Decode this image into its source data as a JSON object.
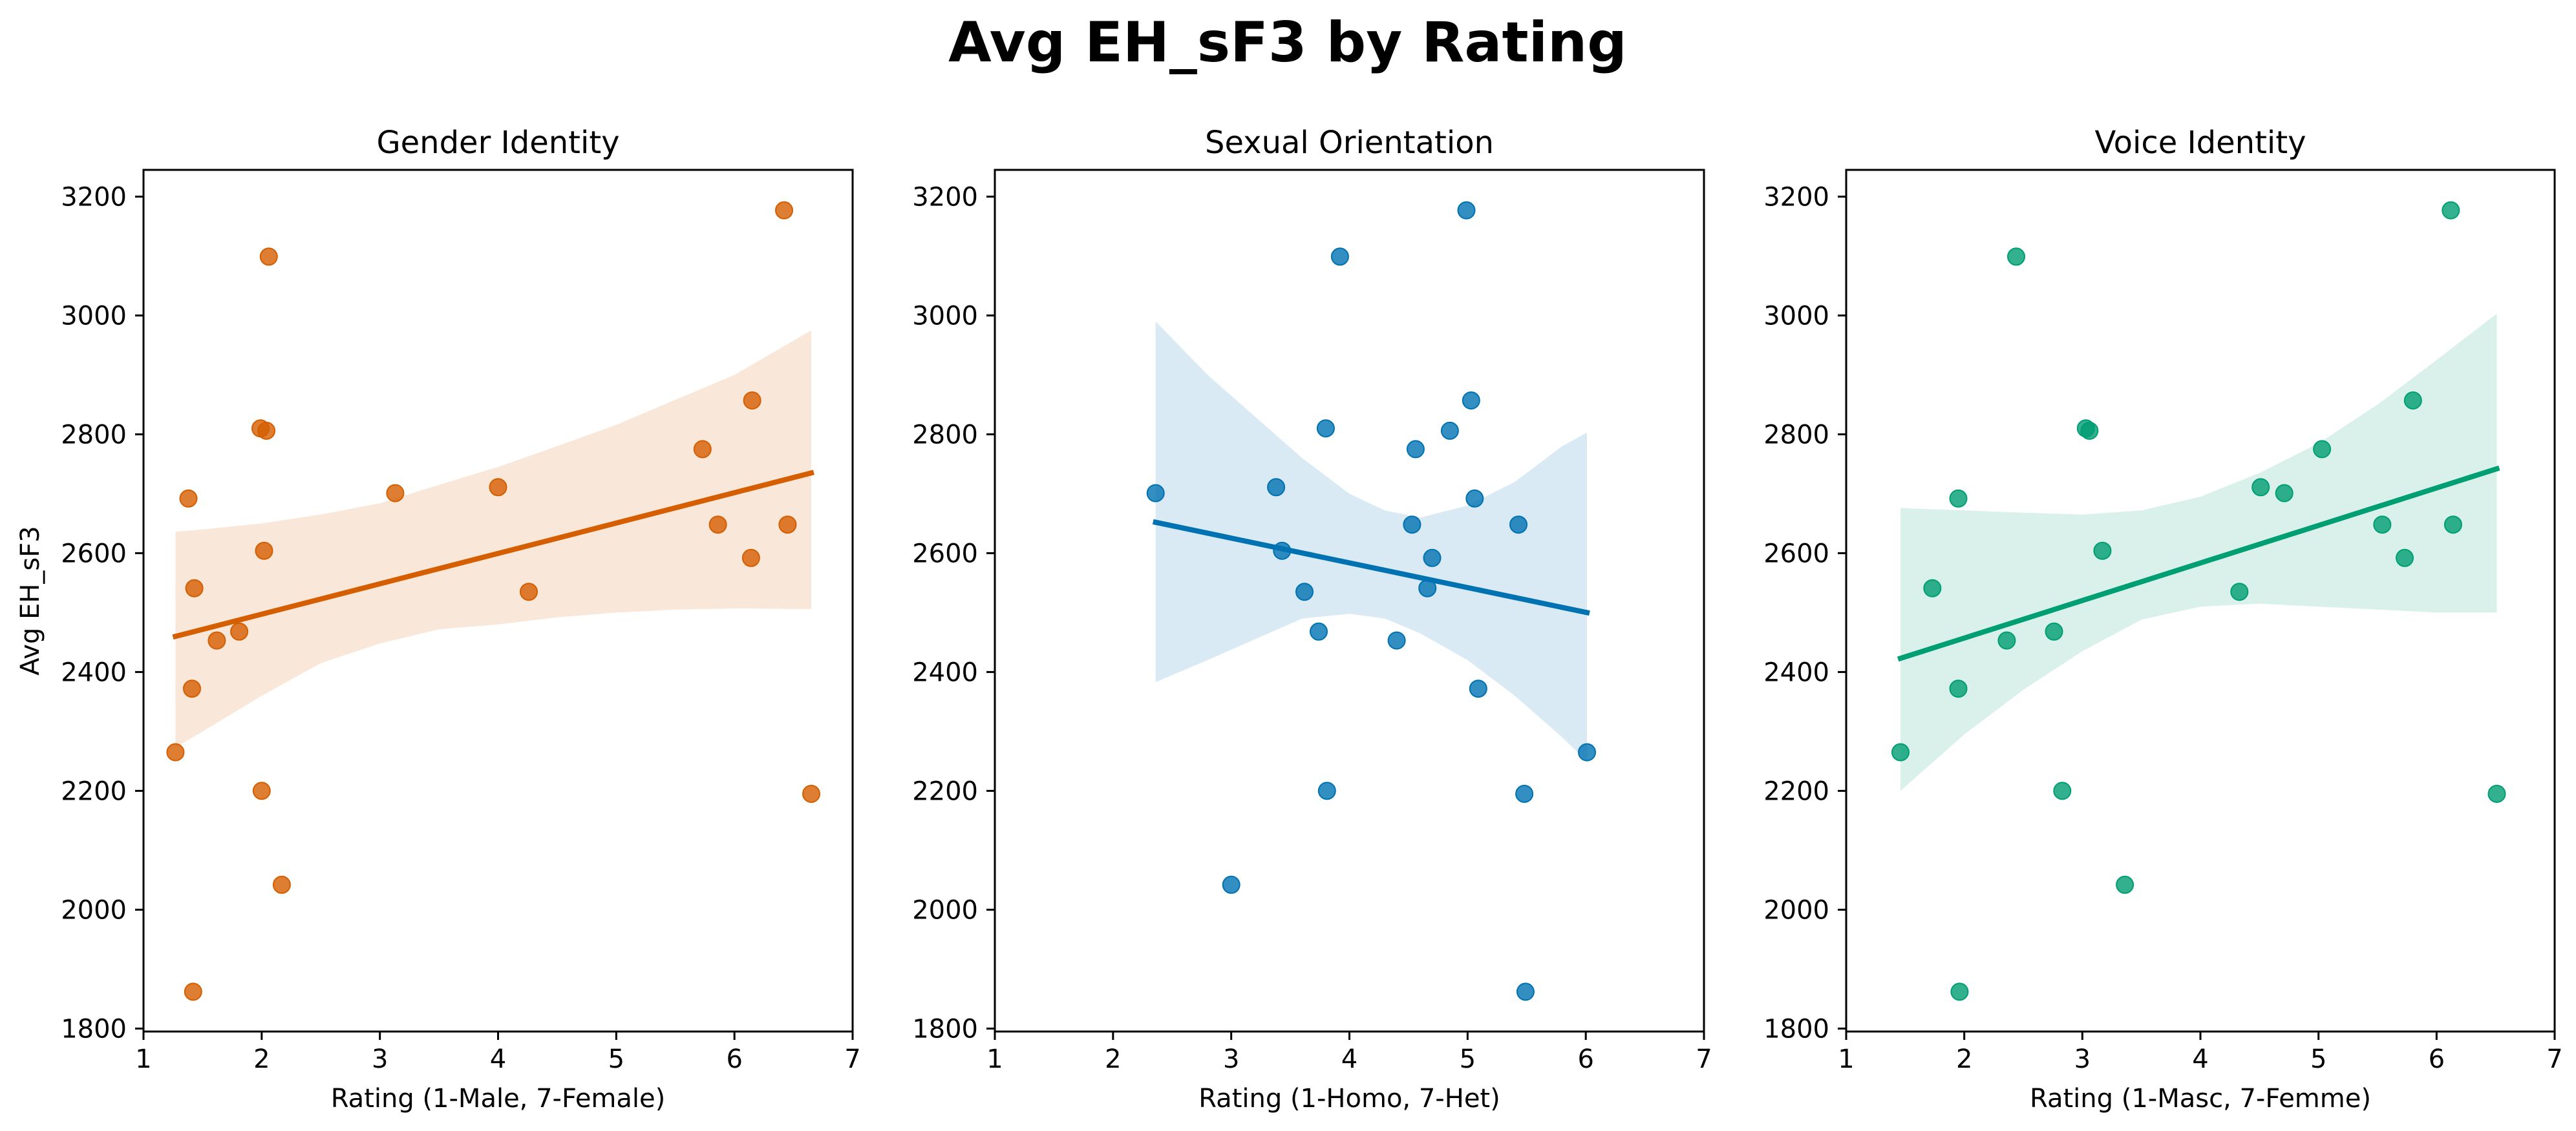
{
  "figure": {
    "title": "Avg EH_sF3 by Rating"
  },
  "chart_data": [
    {
      "type": "scatter",
      "title": "Gender Identity",
      "xlabel": "Rating (1-Male, 7-Female)",
      "ylabel": "Avg EH_sF3",
      "xlim": [
        1,
        7
      ],
      "ylim": [
        1795,
        3245
      ],
      "xticks": [
        1,
        2,
        3,
        4,
        5,
        6,
        7
      ],
      "yticks": [
        1800,
        2000,
        2200,
        2400,
        2600,
        2800,
        3000,
        3200
      ],
      "color": "#d55e00",
      "points": [
        {
          "x": 1.27,
          "y": 2265
        },
        {
          "x": 1.38,
          "y": 2692
        },
        {
          "x": 1.41,
          "y": 2372
        },
        {
          "x": 1.42,
          "y": 1862
        },
        {
          "x": 1.43,
          "y": 2541
        },
        {
          "x": 1.62,
          "y": 2453
        },
        {
          "x": 1.81,
          "y": 2468
        },
        {
          "x": 1.99,
          "y": 2810
        },
        {
          "x": 2.0,
          "y": 2200
        },
        {
          "x": 2.02,
          "y": 2604
        },
        {
          "x": 2.04,
          "y": 2806
        },
        {
          "x": 2.06,
          "y": 3099
        },
        {
          "x": 2.17,
          "y": 2042
        },
        {
          "x": 3.13,
          "y": 2701
        },
        {
          "x": 4.0,
          "y": 2711
        },
        {
          "x": 4.26,
          "y": 2535
        },
        {
          "x": 5.73,
          "y": 2775
        },
        {
          "x": 5.86,
          "y": 2648
        },
        {
          "x": 6.14,
          "y": 2592
        },
        {
          "x": 6.15,
          "y": 2857
        },
        {
          "x": 6.42,
          "y": 3177
        },
        {
          "x": 6.45,
          "y": 2648
        },
        {
          "x": 6.65,
          "y": 2195
        }
      ],
      "regression": {
        "x": [
          1.27,
          6.65
        ],
        "y": [
          2460,
          2735
        ]
      },
      "ci_band": {
        "x": [
          1.27,
          1.5,
          2.0,
          2.5,
          3.0,
          3.5,
          4.0,
          4.5,
          5.0,
          5.5,
          6.0,
          6.65
        ],
        "upper": [
          2636,
          2640,
          2650,
          2665,
          2684,
          2715,
          2745,
          2780,
          2816,
          2858,
          2900,
          2975
        ],
        "lower": [
          2273,
          2300,
          2360,
          2415,
          2448,
          2472,
          2480,
          2492,
          2500,
          2505,
          2507,
          2506
        ]
      }
    },
    {
      "type": "scatter",
      "title": "Sexual Orientation",
      "xlabel": "Rating (1-Homo, 7-Het)",
      "ylabel": "",
      "xlim": [
        1,
        7
      ],
      "ylim": [
        1795,
        3245
      ],
      "xticks": [
        1,
        2,
        3,
        4,
        5,
        6,
        7
      ],
      "yticks": [
        1800,
        2000,
        2200,
        2400,
        2600,
        2800,
        3000,
        3200
      ],
      "color": "#0072b2",
      "points": [
        {
          "x": 2.36,
          "y": 2701
        },
        {
          "x": 3.0,
          "y": 2042
        },
        {
          "x": 3.38,
          "y": 2711
        },
        {
          "x": 3.43,
          "y": 2604
        },
        {
          "x": 3.62,
          "y": 2535
        },
        {
          "x": 3.74,
          "y": 2468
        },
        {
          "x": 3.8,
          "y": 2810
        },
        {
          "x": 3.81,
          "y": 2200
        },
        {
          "x": 3.92,
          "y": 3099
        },
        {
          "x": 4.4,
          "y": 2453
        },
        {
          "x": 4.53,
          "y": 2648
        },
        {
          "x": 4.56,
          "y": 2775
        },
        {
          "x": 4.66,
          "y": 2541
        },
        {
          "x": 4.7,
          "y": 2592
        },
        {
          "x": 4.85,
          "y": 2806
        },
        {
          "x": 4.99,
          "y": 3177
        },
        {
          "x": 5.03,
          "y": 2857
        },
        {
          "x": 5.06,
          "y": 2692
        },
        {
          "x": 5.09,
          "y": 2372
        },
        {
          "x": 5.43,
          "y": 2648
        },
        {
          "x": 5.48,
          "y": 2195
        },
        {
          "x": 5.49,
          "y": 1862
        },
        {
          "x": 6.01,
          "y": 2265
        }
      ],
      "regression": {
        "x": [
          2.36,
          6.01
        ],
        "y": [
          2652,
          2500
        ]
      },
      "ci_band": {
        "x": [
          2.36,
          2.8,
          3.2,
          3.6,
          4.0,
          4.3,
          4.6,
          5.0,
          5.4,
          5.8,
          6.01
        ],
        "upper": [
          2990,
          2900,
          2830,
          2760,
          2700,
          2672,
          2660,
          2680,
          2720,
          2780,
          2803
        ],
        "lower": [
          2383,
          2420,
          2455,
          2490,
          2498,
          2490,
          2465,
          2420,
          2360,
          2290,
          2250
        ]
      }
    },
    {
      "type": "scatter",
      "title": "Voice Identity",
      "xlabel": "Rating (1-Masc, 7-Femme)",
      "ylabel": "",
      "xlim": [
        1,
        7
      ],
      "ylim": [
        1795,
        3245
      ],
      "xticks": [
        1,
        2,
        3,
        4,
        5,
        6,
        7
      ],
      "yticks": [
        1800,
        2000,
        2200,
        2400,
        2600,
        2800,
        3000,
        3200
      ],
      "color": "#009e73",
      "points": [
        {
          "x": 1.46,
          "y": 2265
        },
        {
          "x": 1.73,
          "y": 2541
        },
        {
          "x": 1.95,
          "y": 2692
        },
        {
          "x": 1.95,
          "y": 2372
        },
        {
          "x": 1.96,
          "y": 1862
        },
        {
          "x": 2.36,
          "y": 2453
        },
        {
          "x": 2.44,
          "y": 3099
        },
        {
          "x": 2.76,
          "y": 2468
        },
        {
          "x": 2.83,
          "y": 2200
        },
        {
          "x": 3.03,
          "y": 2810
        },
        {
          "x": 3.06,
          "y": 2806
        },
        {
          "x": 3.17,
          "y": 2604
        },
        {
          "x": 3.36,
          "y": 2042
        },
        {
          "x": 4.33,
          "y": 2535
        },
        {
          "x": 4.51,
          "y": 2711
        },
        {
          "x": 4.71,
          "y": 2701
        },
        {
          "x": 5.03,
          "y": 2775
        },
        {
          "x": 5.54,
          "y": 2648
        },
        {
          "x": 5.73,
          "y": 2592
        },
        {
          "x": 5.8,
          "y": 2857
        },
        {
          "x": 6.12,
          "y": 3177
        },
        {
          "x": 6.14,
          "y": 2648
        },
        {
          "x": 6.51,
          "y": 2195
        }
      ],
      "regression": {
        "x": [
          1.46,
          6.51
        ],
        "y": [
          2423,
          2742
        ]
      },
      "ci_band": {
        "x": [
          1.46,
          2.0,
          2.5,
          3.0,
          3.5,
          4.0,
          4.5,
          5.0,
          5.5,
          6.0,
          6.51
        ],
        "upper": [
          2676,
          2672,
          2668,
          2665,
          2672,
          2695,
          2735,
          2785,
          2850,
          2925,
          3003
        ],
        "lower": [
          2200,
          2295,
          2370,
          2435,
          2488,
          2510,
          2515,
          2510,
          2505,
          2500,
          2500
        ]
      }
    }
  ]
}
